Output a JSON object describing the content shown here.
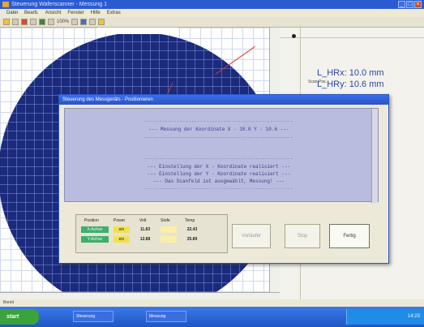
{
  "window": {
    "title": "Steuerung Waferscanner - Messung 1"
  },
  "menu": [
    "Datei",
    "Bearb.",
    "Ansicht",
    "Fenster",
    "Hilfe",
    "Extras"
  ],
  "toolbar": {
    "zoom_text": "100%"
  },
  "right_panel": {
    "label": "Scan-Pos.",
    "values": [
      "L_HRx: 10.0 mm",
      "L_HRy: 10.6 mm"
    ]
  },
  "dialog": {
    "title": "Steuerung des Messgeräts - Positionieren",
    "messages": [
      "---------------------------------------------------",
      "--- Messung der Koordinate X - 10.0 Y - 10.6 ---",
      "---------------------------------------------------",
      "",
      "---------------------------------------------------",
      "--- Einstellung der X - Koordinate realisiert ---",
      "--- Einstellung der Y - Koordinate realisiert ---",
      "--- Das Scanfeld ist ausgewählt, Messung! ---",
      "---------------------------------------------------"
    ],
    "status": {
      "headers": [
        "Position",
        "Power",
        "Volt",
        "Stufe",
        "Temp"
      ],
      "rows": [
        {
          "position": "X-Achse",
          "power": "ein",
          "volt": "11.83",
          "temp": "22.43"
        },
        {
          "position": "Y-Achse",
          "power": "ein",
          "volt": "12.88",
          "temp": "25.89"
        }
      ]
    },
    "buttons": {
      "start": "Vorläufer",
      "stop": "Stop",
      "finish": "Fertig"
    }
  },
  "statusbar": {
    "text": "Bereit"
  },
  "taskbar": {
    "start": "start",
    "items": [
      "Steuerung",
      "Messung"
    ],
    "clock": "14:23"
  },
  "colors": {
    "wafer": "#1b2a7a",
    "dialog_msg_bg": "#b9bcdf",
    "status_green": "#3fae6c",
    "status_yellow": "#f2e24a"
  }
}
